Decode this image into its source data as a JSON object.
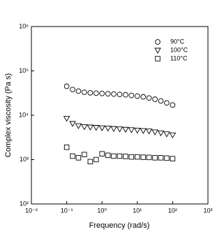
{
  "chart_data": {
    "type": "scatter",
    "x_label": "Frequency (rad/s)",
    "y_label": "Complex viscosity (Pa s)",
    "x": [
      0.1,
      0.147,
      0.215,
      0.316,
      0.464,
      0.681,
      1,
      1.47,
      2.15,
      3.16,
      4.64,
      6.81,
      10,
      14.7,
      21.5,
      31.6,
      46.4,
      68.1,
      100
    ],
    "series": [
      {
        "name": "90°C",
        "color": "#000000",
        "marker": "circle",
        "values": [
          45000,
          38000,
          35000,
          33000,
          32000,
          31500,
          31000,
          30500,
          30000,
          29500,
          29000,
          28000,
          27000,
          26000,
          24500,
          23000,
          21000,
          19000,
          17000
        ]
      },
      {
        "name": "100°C",
        "color": "#000000",
        "marker": "triangle-down",
        "values": [
          8500,
          6500,
          5800,
          5500,
          5400,
          5300,
          5200,
          5100,
          5000,
          4900,
          4800,
          4700,
          4600,
          4500,
          4400,
          4200,
          4000,
          3800,
          3600
        ]
      },
      {
        "name": "110°C",
        "color": "#000000",
        "marker": "square",
        "values": [
          1900,
          1200,
          1100,
          1300,
          900,
          1000,
          1350,
          1250,
          1200,
          1200,
          1180,
          1150,
          1150,
          1130,
          1120,
          1100,
          1100,
          1080,
          1050
        ]
      }
    ],
    "xscale": "log",
    "yscale": "log",
    "xlim": [
      0.01,
      1000
    ],
    "ylim": [
      100,
      1000000
    ],
    "xticks": [
      {
        "value": 0.01,
        "label": "10⁻²"
      },
      {
        "value": 0.1,
        "label": "10⁻¹"
      },
      {
        "value": 1,
        "label": "10⁰"
      },
      {
        "value": 10,
        "label": "10¹"
      },
      {
        "value": 100,
        "label": "10²"
      },
      {
        "value": 1000,
        "label": "10³"
      }
    ],
    "yticks": [
      {
        "value": 100,
        "label": "10²"
      },
      {
        "value": 1000,
        "label": "10³"
      },
      {
        "value": 10000,
        "label": "10⁴"
      },
      {
        "value": 100000,
        "label": "10⁵"
      },
      {
        "value": 1000000,
        "label": "10⁶"
      }
    ],
    "legend": "upper right",
    "grid": false
  }
}
